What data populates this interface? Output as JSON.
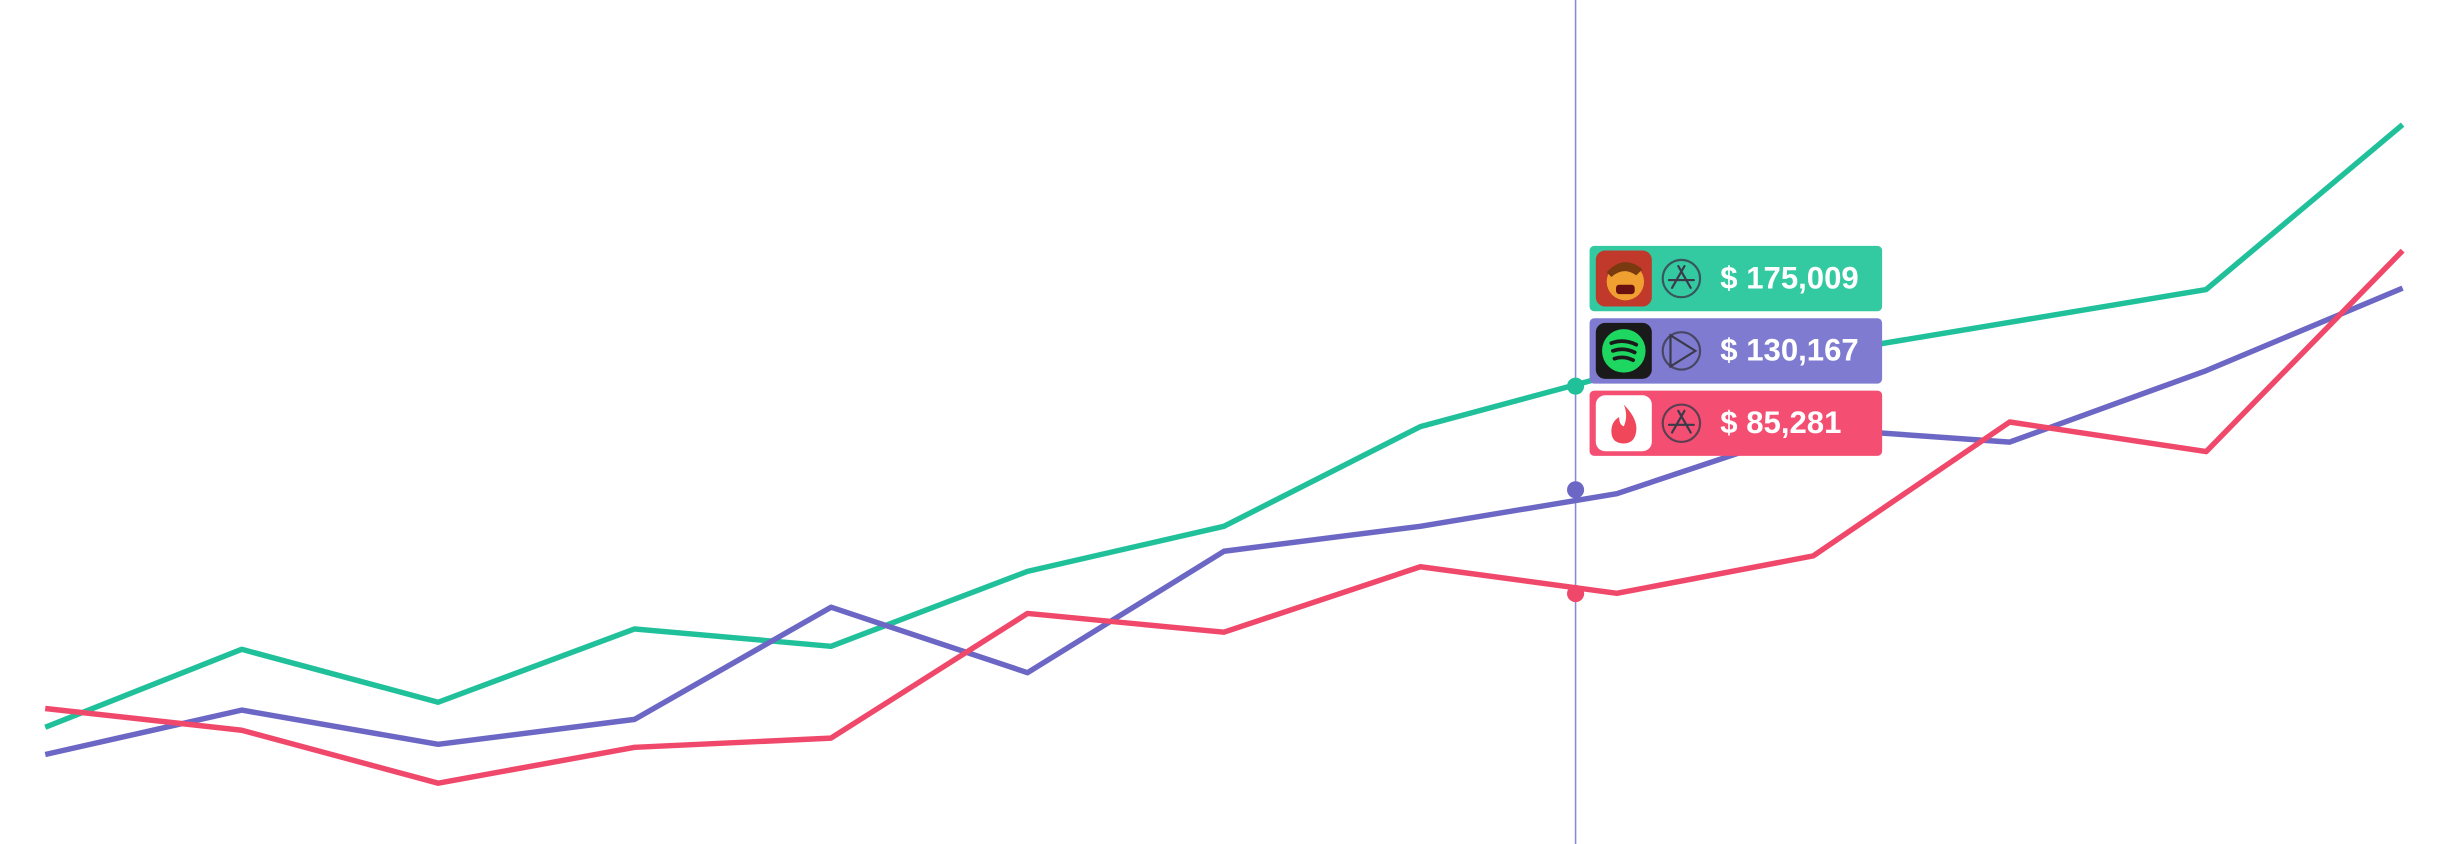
{
  "chart_data": {
    "type": "line",
    "x": [
      0,
      1,
      2,
      3,
      4,
      5,
      6,
      7,
      8,
      9,
      10,
      11,
      12
    ],
    "xlim": [
      -0.23,
      12.19
    ],
    "ylim": [
      -23000,
      342000
    ],
    "series": [
      {
        "color": "#20c19a",
        "values": [
          27500,
          61200,
          38300,
          70000,
          62500,
          94900,
          114400,
          157500,
          180400,
          188500,
          202600,
          216800,
          288100
        ]
      },
      {
        "color": "#6c67c4",
        "values": [
          15700,
          34900,
          20100,
          30900,
          79400,
          51100,
          103600,
          114400,
          128500,
          156800,
          150800,
          181700,
          217400
        ]
      },
      {
        "color": "#f0486a",
        "values": [
          35600,
          26200,
          3300,
          18800,
          22800,
          76700,
          68600,
          96900,
          85400,
          101600,
          159500,
          146700,
          233600
        ]
      }
    ],
    "hover": {
      "x": 7.79,
      "line_color": "#8b88d8",
      "colors": [
        "#33c9a1",
        "#7f7bd0",
        "#f44f73"
      ],
      "values": [
        175009,
        130167,
        85281
      ],
      "value_labels": [
        "$ 175,009",
        "$ 130,167",
        "$ 85,281"
      ]
    }
  }
}
